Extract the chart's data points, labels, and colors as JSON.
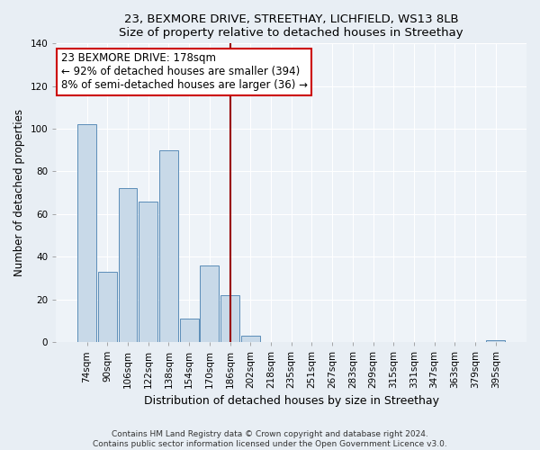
{
  "title1": "23, BEXMORE DRIVE, STREETHAY, LICHFIELD, WS13 8LB",
  "title2": "Size of property relative to detached houses in Streethay",
  "xlabel": "Distribution of detached houses by size in Streethay",
  "ylabel": "Number of detached properties",
  "bar_labels": [
    "74sqm",
    "90sqm",
    "106sqm",
    "122sqm",
    "138sqm",
    "154sqm",
    "170sqm",
    "186sqm",
    "202sqm",
    "218sqm",
    "235sqm",
    "251sqm",
    "267sqm",
    "283sqm",
    "299sqm",
    "315sqm",
    "331sqm",
    "347sqm",
    "363sqm",
    "379sqm",
    "395sqm"
  ],
  "bar_values": [
    102,
    33,
    72,
    66,
    90,
    11,
    36,
    22,
    3,
    0,
    0,
    0,
    0,
    0,
    0,
    0,
    0,
    0,
    0,
    0,
    1
  ],
  "bar_color": "#c8d9e8",
  "bar_edge_color": "#5b8db8",
  "vline_x_index": 7,
  "vline_color": "#990000",
  "annotation_title": "23 BEXMORE DRIVE: 178sqm",
  "annotation_line1": "← 92% of detached houses are smaller (394)",
  "annotation_line2": "8% of semi-detached houses are larger (36) →",
  "annotation_box_facecolor": "#ffffff",
  "annotation_box_edgecolor": "#cc0000",
  "ylim": [
    0,
    140
  ],
  "yticks": [
    0,
    20,
    40,
    60,
    80,
    100,
    120,
    140
  ],
  "footnote1": "Contains HM Land Registry data © Crown copyright and database right 2024.",
  "footnote2": "Contains public sector information licensed under the Open Government Licence v3.0.",
  "fig_bg_color": "#e8eef4",
  "plot_bg_color": "#eef3f8",
  "grid_color": "#ffffff",
  "title_fontsize": 9.5,
  "label_fontsize": 9,
  "tick_fontsize": 7.5,
  "ylabel_fontsize": 8.5,
  "footnote_fontsize": 6.5,
  "ann_fontsize": 8.5
}
